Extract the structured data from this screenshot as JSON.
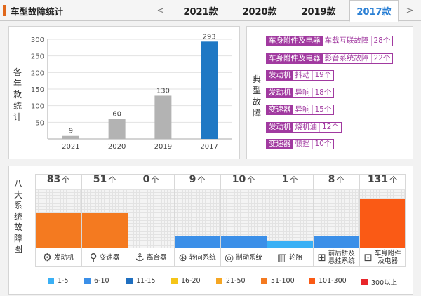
{
  "header": {
    "title": "车型故障统计",
    "prev_arrow": "<",
    "next_arrow": ">",
    "tabs": [
      {
        "label": "2021款",
        "active": false
      },
      {
        "label": "2020款",
        "active": false
      },
      {
        "label": "2019款",
        "active": false
      },
      {
        "label": "2017款",
        "active": true
      }
    ]
  },
  "yearly": {
    "side_label": [
      "各",
      "年",
      "款",
      "统",
      "计"
    ],
    "chart_data": {
      "type": "bar",
      "categories": [
        "2021",
        "2020",
        "2019",
        "2017"
      ],
      "values": [
        9,
        60,
        130,
        293
      ],
      "ylim": [
        0,
        300
      ],
      "yticks": [
        50,
        100,
        150,
        200,
        250,
        300
      ],
      "bar_colors": [
        "#b3b3b3",
        "#b3b3b3",
        "#b3b3b3",
        "#1f78c4"
      ],
      "grid": true
    }
  },
  "typical": {
    "side_label": [
      "典",
      "型",
      "故",
      "障"
    ],
    "faults": [
      {
        "system": "车身附件及电器",
        "desc": "车载互联故障",
        "count": "28个"
      },
      {
        "system": "车身附件及电器",
        "desc": "影音系统故障",
        "count": "22个"
      },
      {
        "system": "发动机",
        "desc": "抖动",
        "count": "19个"
      },
      {
        "system": "发动机",
        "desc": "异响",
        "count": "18个"
      },
      {
        "system": "变速器",
        "desc": "异响",
        "count": "15个"
      },
      {
        "system": "发动机",
        "desc": "烧机油",
        "count": "12个"
      },
      {
        "system": "变速器",
        "desc": "顿挫",
        "count": "10个"
      }
    ]
  },
  "systems": {
    "side_label": [
      "八",
      "大",
      "系",
      "统",
      "故",
      "障",
      "图"
    ],
    "unit": "个",
    "items": [
      {
        "name": "发动机",
        "icon": "engine-icon",
        "glyph": "⚙",
        "count": "83",
        "level": 0.6,
        "color": "#f47a20"
      },
      {
        "name": "变速器",
        "icon": "gear-shift-icon",
        "glyph": "⚲",
        "count": "51",
        "level": 0.6,
        "color": "#f47a20"
      },
      {
        "name": "离合器",
        "icon": "clutch-pedal-icon",
        "glyph": "⚓",
        "count": "0",
        "level": 0,
        "color": "#f47a20"
      },
      {
        "name": "转向系统",
        "icon": "steering-wheel-icon",
        "glyph": "⊛",
        "count": "9",
        "level": 0.22,
        "color": "#3b8fe8"
      },
      {
        "name": "制动系统",
        "icon": "brake-disc-icon",
        "glyph": "◎",
        "count": "10",
        "level": 0.22,
        "color": "#3b8fe8"
      },
      {
        "name": "轮胎",
        "icon": "tire-icon",
        "glyph": "▥",
        "count": "1",
        "level": 0.12,
        "color": "#3ab0f5"
      },
      {
        "name": "前后桥及\n悬挂系统",
        "icon": "suspension-icon",
        "glyph": "⊞",
        "count": "8",
        "level": 0.22,
        "color": "#3b8fe8"
      },
      {
        "name": "车身附件\n及电器",
        "icon": "car-body-icon",
        "glyph": "⊡",
        "count": "131",
        "level": 0.83,
        "color": "#fa5a15"
      }
    ],
    "legend": [
      {
        "label": "1-5",
        "color": "#3ab0f5"
      },
      {
        "label": "6-10",
        "color": "#3b8fe8"
      },
      {
        "label": "11-15",
        "color": "#1f6fc0"
      },
      {
        "label": "16-20",
        "color": "#f5c518"
      },
      {
        "label": "21-50",
        "color": "#f5a623"
      },
      {
        "label": "51-100",
        "color": "#f47a20"
      },
      {
        "label": "101-300",
        "color": "#fa5a15"
      },
      {
        "label": "300以上",
        "color": "#e8262b"
      }
    ]
  }
}
